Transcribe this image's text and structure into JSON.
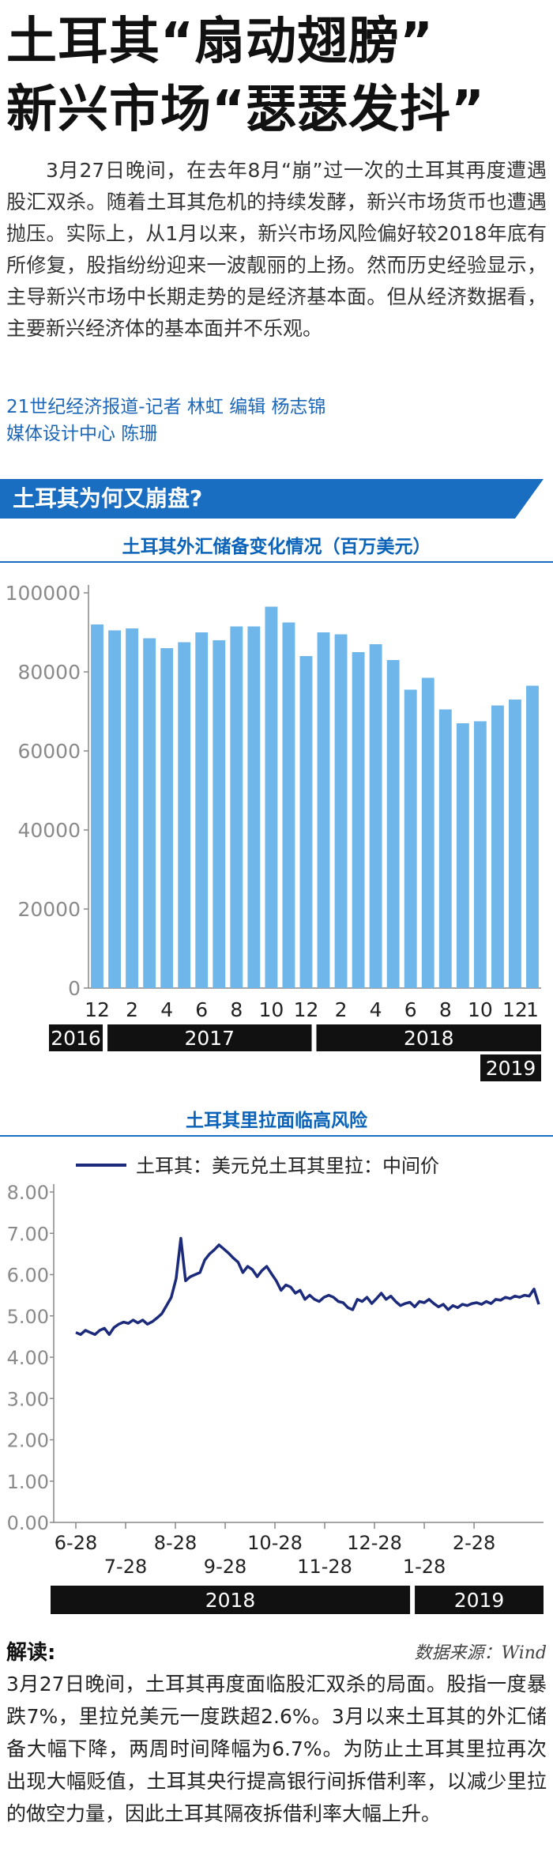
{
  "headline": {
    "line1": "土耳其“扇动翅膀”",
    "line2": "新兴市场“瑟瑟发抖”"
  },
  "intro": "3月27日晚间，在去年8月“崩”过一次的土耳其再度遭遇股汇双杀。随着土耳其危机的持续发酵，新兴市场货币也遭遇抛压。实际上，从1月以来，新兴市场风险偏好较2018年底有所修复，股指纷纷迎来一波靓丽的上扬。然而历史经验显示，主导新兴市场中长期走势的是经济基本面。但从经济数据看，主要新兴经济体的基本面并不乐观。",
  "byline": {
    "line1": "21世纪经济报道-记者 林虹  编辑 杨志锦",
    "line2": "媒体设计中心 陈珊"
  },
  "section_title": "土耳其为何又崩盘?",
  "colors": {
    "accent": "#1a6ec2",
    "bar": "#6fb6ea",
    "line": "#1b2a7a"
  },
  "chart_data": [
    {
      "type": "bar",
      "title": "土耳其外汇储备变化情况（百万美元）",
      "ylim": [
        0,
        100000
      ],
      "yticks": [
        "0",
        "20000",
        "40000",
        "60000",
        "80000",
        "100000"
      ],
      "values": [
        92000,
        90500,
        91000,
        88500,
        86000,
        87500,
        90000,
        88000,
        91500,
        91500,
        96500,
        92500,
        84000,
        90000,
        89500,
        85000,
        87000,
        83000,
        75500,
        78500,
        70500,
        67000,
        67500,
        71500,
        73000,
        76500
      ],
      "xtick_labels": [
        "12",
        "2",
        "4",
        "6",
        "8",
        "10",
        "12",
        "2",
        "4",
        "6",
        "8",
        "10",
        "12",
        "1"
      ],
      "years": [
        "2016",
        "2017",
        "2018",
        "2019"
      ]
    },
    {
      "type": "line",
      "title": "土耳其里拉面临高风险",
      "legend": "土耳其：美元兑土耳其里拉：中间价",
      "ylim": [
        0,
        8
      ],
      "yticks": [
        "0.00",
        "1.00",
        "2.00",
        "3.00",
        "4.00",
        "5.00",
        "6.00",
        "7.00",
        "8.00"
      ],
      "xtick_labels_top": [
        "6-28",
        "8-28",
        "10-28",
        "12-28",
        "2-28"
      ],
      "xtick_labels_bottom": [
        "7-28",
        "9-28",
        "11-28",
        "1-28"
      ],
      "years": [
        "2018",
        "2019"
      ],
      "values": [
        4.6,
        4.55,
        4.65,
        4.6,
        4.55,
        4.65,
        4.7,
        4.55,
        4.72,
        4.8,
        4.85,
        4.82,
        4.9,
        4.83,
        4.9,
        4.8,
        4.86,
        4.95,
        5.05,
        5.25,
        5.45,
        5.9,
        6.88,
        5.85,
        5.95,
        6.0,
        6.05,
        6.35,
        6.5,
        6.6,
        6.72,
        6.62,
        6.52,
        6.4,
        6.3,
        6.05,
        6.2,
        6.12,
        5.95,
        6.1,
        6.2,
        6.02,
        5.85,
        5.62,
        5.75,
        5.7,
        5.55,
        5.62,
        5.4,
        5.5,
        5.4,
        5.35,
        5.45,
        5.5,
        5.45,
        5.35,
        5.32,
        5.2,
        5.15,
        5.4,
        5.35,
        5.45,
        5.3,
        5.42,
        5.55,
        5.4,
        5.48,
        5.35,
        5.25,
        5.3,
        5.33,
        5.22,
        5.35,
        5.32,
        5.4,
        5.3,
        5.22,
        5.28,
        5.15,
        5.25,
        5.2,
        5.28,
        5.25,
        5.3,
        5.32,
        5.28,
        5.35,
        5.3,
        5.4,
        5.38,
        5.45,
        5.42,
        5.48,
        5.45,
        5.5,
        5.48,
        5.65,
        5.28
      ]
    }
  ],
  "jiedu_label": "解读:",
  "source": "数据来源：Wind",
  "jiedu": "3月27日晚间，土耳其再度面临股汇双杀的局面。股指一度暴跌7%，里拉兑美元一度跌超2.6%。3月以来土耳其的外汇储备大幅下降，两周时间降幅为6.7%。为防止土耳其里拉再次出现大幅贬值，土耳其央行提高银行间拆借利率，以减少里拉的做空力量，因此土耳其隔夜拆借利率大幅上升。"
}
